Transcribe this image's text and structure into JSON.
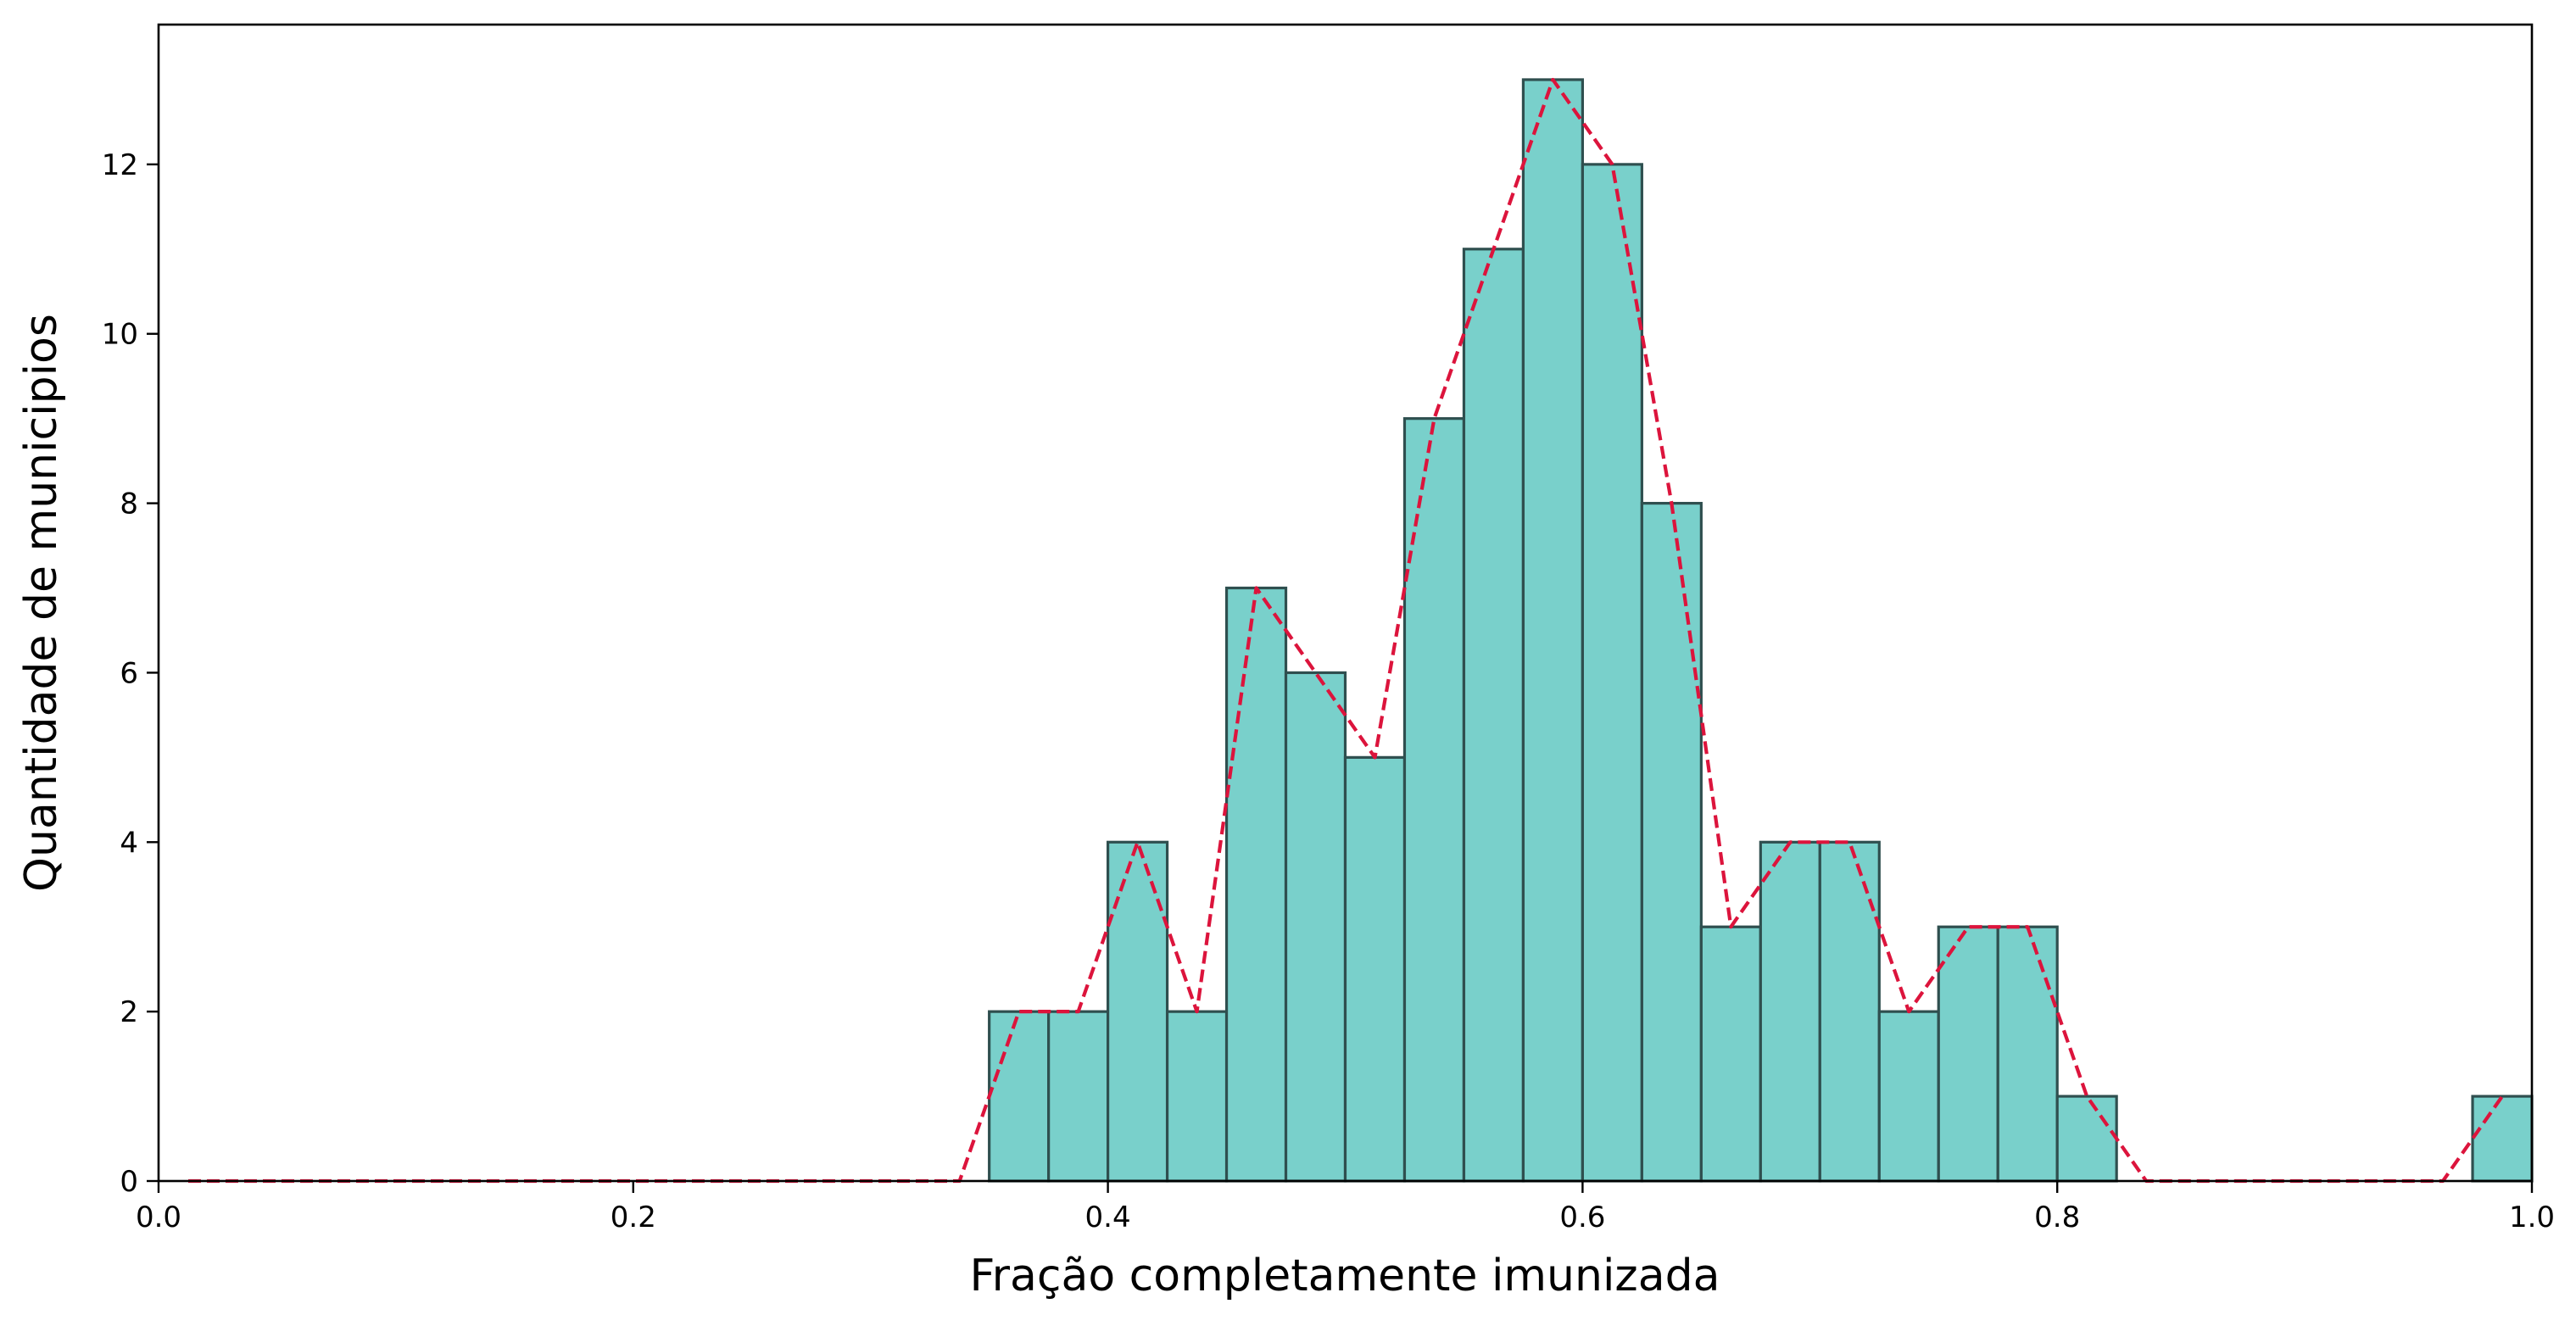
{
  "chart_data": {
    "type": "bar",
    "title": "",
    "xlabel": "Fração completamente imunizada",
    "ylabel": "Quantidade de municipios",
    "xlim": [
      0.0,
      1.0
    ],
    "ylim": [
      0,
      13.65
    ],
    "xticks": [
      "0.0",
      "0.2",
      "0.4",
      "0.6",
      "0.8",
      "1.0"
    ],
    "yticks": [
      "0",
      "2",
      "4",
      "6",
      "8",
      "10",
      "12"
    ],
    "bin_width": 0.025,
    "bin_starts": [
      0.35,
      0.375,
      0.4,
      0.425,
      0.45,
      0.475,
      0.5,
      0.525,
      0.55,
      0.575,
      0.6,
      0.625,
      0.65,
      0.675,
      0.7,
      0.725,
      0.75,
      0.775,
      0.8,
      0.975
    ],
    "values": [
      2,
      2,
      4,
      2,
      7,
      6,
      5,
      9,
      11,
      13,
      12,
      8,
      3,
      4,
      4,
      2,
      3,
      3,
      1,
      1
    ],
    "line": {
      "style": "dashed",
      "x": [
        0.0125,
        0.0375,
        0.0625,
        0.0875,
        0.1125,
        0.1375,
        0.1625,
        0.1875,
        0.2125,
        0.2375,
        0.2625,
        0.2875,
        0.3125,
        0.3375,
        0.3625,
        0.3875,
        0.4125,
        0.4375,
        0.4625,
        0.4875,
        0.5125,
        0.5375,
        0.5625,
        0.5875,
        0.6125,
        0.6375,
        0.6625,
        0.6875,
        0.7125,
        0.7375,
        0.7625,
        0.7875,
        0.8125,
        0.8375,
        0.8625,
        0.8875,
        0.9125,
        0.9375,
        0.9625,
        0.9875
      ],
      "y": [
        0,
        0,
        0,
        0,
        0,
        0,
        0,
        0,
        0,
        0,
        0,
        0,
        0,
        0,
        2,
        2,
        4,
        2,
        7,
        6,
        5,
        9,
        11,
        13,
        12,
        8,
        3,
        4,
        4,
        2,
        3,
        3,
        1,
        0,
        0,
        0,
        0,
        0,
        0,
        1
      ]
    },
    "colors": {
      "bar_fill": "#79d0cb",
      "bar_edge": "#2f4f4f",
      "line": "#dc143c"
    },
    "grid": false,
    "legend": "none"
  }
}
